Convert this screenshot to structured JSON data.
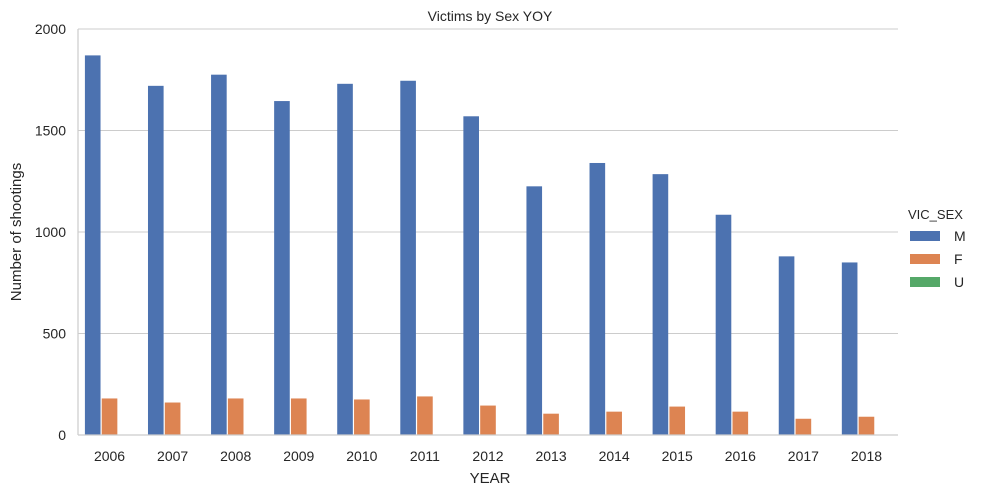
{
  "chart_data": {
    "type": "bar",
    "title": "Victims by Sex YOY",
    "xlabel": "YEAR",
    "ylabel": "Number of shootings",
    "categories": [
      "2006",
      "2007",
      "2008",
      "2009",
      "2010",
      "2011",
      "2012",
      "2013",
      "2014",
      "2015",
      "2016",
      "2017",
      "2018"
    ],
    "series": [
      {
        "name": "M",
        "color": "#4c72b0",
        "values": [
          1870,
          1720,
          1775,
          1645,
          1730,
          1745,
          1570,
          1225,
          1340,
          1285,
          1085,
          880,
          850
        ]
      },
      {
        "name": "F",
        "color": "#dd8452",
        "values": [
          180,
          160,
          180,
          180,
          175,
          190,
          145,
          105,
          115,
          140,
          115,
          80,
          90
        ]
      },
      {
        "name": "U",
        "color": "#55a868",
        "values": [
          2,
          1,
          1,
          1,
          1,
          1,
          1,
          1,
          1,
          1,
          1,
          1,
          1
        ]
      }
    ],
    "ylim": [
      0,
      2000
    ],
    "yticks": [
      0,
      500,
      1000,
      1500,
      2000
    ],
    "grid": true,
    "legend_title": "VIC_SEX",
    "legend_position": "right"
  }
}
